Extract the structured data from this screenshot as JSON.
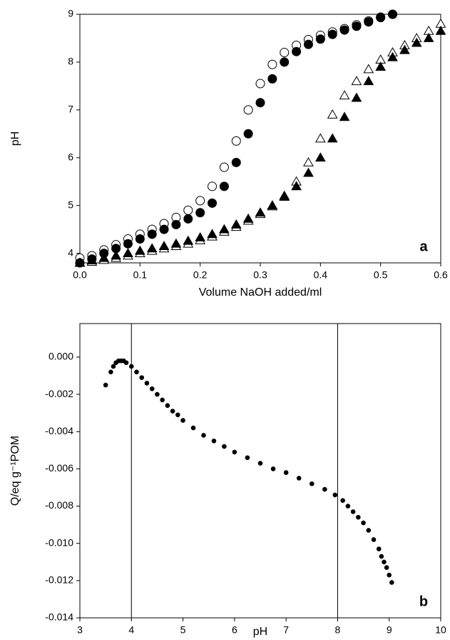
{
  "chart_data": [
    {
      "type": "scatter",
      "x_label": "Volume NaOH added/ml",
      "y_label": "pH",
      "annotation": "a",
      "xlim": [
        0,
        0.6
      ],
      "ylim": [
        3.8,
        9
      ],
      "xticks": [
        {
          "value": 0,
          "label": "0.0"
        },
        0.1,
        0.2,
        0.3,
        0.4,
        0.5,
        0.6
      ],
      "yticks": [
        4,
        5,
        6,
        7,
        8,
        9
      ],
      "series": [
        {
          "marker": "circle",
          "filled": false,
          "color": "#000000",
          "x": [
            0,
            0.02,
            0.04,
            0.06,
            0.08,
            0.1,
            0.12,
            0.14,
            0.16,
            0.18,
            0.2,
            0.22,
            0.24,
            0.26,
            0.28,
            0.3,
            0.32,
            0.34,
            0.36,
            0.38,
            0.4,
            0.42,
            0.44,
            0.46,
            0.48,
            0.5,
            0.52
          ],
          "values": [
            3.9,
            3.95,
            4.07,
            4.18,
            4.3,
            4.4,
            4.5,
            4.62,
            4.75,
            4.9,
            5.1,
            5.4,
            5.8,
            6.35,
            7.0,
            7.55,
            7.95,
            8.2,
            8.35,
            8.47,
            8.56,
            8.63,
            8.7,
            8.78,
            8.86,
            8.94,
            9.0
          ]
        },
        {
          "marker": "circle",
          "filled": true,
          "color": "#000000",
          "x": [
            0,
            0.02,
            0.04,
            0.06,
            0.08,
            0.1,
            0.12,
            0.14,
            0.16,
            0.18,
            0.2,
            0.22,
            0.24,
            0.26,
            0.28,
            0.3,
            0.32,
            0.34,
            0.36,
            0.38,
            0.4,
            0.42,
            0.44,
            0.46,
            0.48,
            0.5,
            0.52
          ],
          "values": [
            3.8,
            3.88,
            4.0,
            4.1,
            4.2,
            4.3,
            4.4,
            4.5,
            4.6,
            4.72,
            4.85,
            5.05,
            5.4,
            5.9,
            6.5,
            7.15,
            7.65,
            8.0,
            8.22,
            8.37,
            8.48,
            8.58,
            8.67,
            8.75,
            8.84,
            8.93,
            9.0
          ]
        },
        {
          "marker": "triangle",
          "filled": false,
          "color": "#000000",
          "x": [
            0,
            0.02,
            0.04,
            0.06,
            0.08,
            0.1,
            0.12,
            0.14,
            0.16,
            0.18,
            0.2,
            0.22,
            0.24,
            0.26,
            0.28,
            0.3,
            0.32,
            0.34,
            0.36,
            0.38,
            0.4,
            0.42,
            0.44,
            0.46,
            0.48,
            0.5,
            0.52,
            0.54,
            0.56,
            0.58,
            0.6
          ],
          "values": [
            3.8,
            3.82,
            3.86,
            3.9,
            3.95,
            4.0,
            4.05,
            4.1,
            4.15,
            4.2,
            4.27,
            4.35,
            4.45,
            4.55,
            4.68,
            4.82,
            4.98,
            5.2,
            5.5,
            5.9,
            6.4,
            6.9,
            7.3,
            7.6,
            7.85,
            8.05,
            8.2,
            8.35,
            8.5,
            8.65,
            8.8
          ]
        },
        {
          "marker": "triangle",
          "filled": true,
          "color": "#000000",
          "x": [
            0,
            0.02,
            0.04,
            0.06,
            0.08,
            0.1,
            0.12,
            0.14,
            0.16,
            0.18,
            0.2,
            0.22,
            0.24,
            0.26,
            0.28,
            0.3,
            0.32,
            0.34,
            0.36,
            0.38,
            0.4,
            0.42,
            0.44,
            0.46,
            0.48,
            0.5,
            0.52,
            0.54,
            0.56,
            0.58,
            0.6
          ],
          "values": [
            3.8,
            3.85,
            3.9,
            3.95,
            4.0,
            4.05,
            4.1,
            4.15,
            4.2,
            4.26,
            4.33,
            4.4,
            4.5,
            4.6,
            4.72,
            4.85,
            5.0,
            5.18,
            5.4,
            5.68,
            6.0,
            6.4,
            6.85,
            7.25,
            7.6,
            7.9,
            8.1,
            8.25,
            8.4,
            8.5,
            8.65
          ]
        }
      ]
    },
    {
      "type": "scatter",
      "x_label": "pH",
      "y_label": "Q/eq g⁻¹POM",
      "annotation": "b",
      "xlim": [
        3,
        10
      ],
      "ylim": [
        -0.014,
        0.0018
      ],
      "xticks": [
        3,
        4,
        5,
        6,
        7,
        8,
        9,
        10
      ],
      "yticks": [
        {
          "value": -0.014,
          "label": "-0.014"
        },
        {
          "value": -0.012,
          "label": "-0.012"
        },
        {
          "value": -0.01,
          "label": "-0.010"
        },
        {
          "value": -0.008,
          "label": "-0.008"
        },
        {
          "value": -0.006,
          "label": "-0.006"
        },
        {
          "value": -0.004,
          "label": "-0.004"
        },
        {
          "value": -0.002,
          "label": "-0.002"
        },
        {
          "value": 0,
          "label": "0.000"
        }
      ],
      "vlines": [
        4,
        8
      ],
      "series": [
        {
          "marker": "dot",
          "filled": true,
          "color": "#000000",
          "x": [
            3.5,
            3.6,
            3.65,
            3.7,
            3.75,
            3.8,
            3.85,
            3.9,
            4.0,
            4.1,
            4.2,
            4.3,
            4.4,
            4.5,
            4.6,
            4.7,
            4.8,
            4.9,
            5.0,
            5.2,
            5.4,
            5.6,
            5.8,
            6.0,
            6.25,
            6.5,
            6.75,
            7.0,
            7.25,
            7.5,
            7.75,
            7.95,
            8.1,
            8.2,
            8.3,
            8.4,
            8.5,
            8.6,
            8.7,
            8.8,
            8.85,
            8.9,
            8.95,
            9.0,
            9.05
          ],
          "values": [
            -0.0015,
            -0.0008,
            -0.0005,
            -0.0003,
            -0.0002,
            -0.0002,
            -0.0002,
            -0.0003,
            -0.0005,
            -0.0008,
            -0.0011,
            -0.0014,
            -0.0017,
            -0.002,
            -0.0023,
            -0.0026,
            -0.0029,
            -0.0031,
            -0.0034,
            -0.0038,
            -0.0042,
            -0.0045,
            -0.0048,
            -0.0051,
            -0.0054,
            -0.0057,
            -0.006,
            -0.0062,
            -0.0065,
            -0.0068,
            -0.0071,
            -0.0074,
            -0.0077,
            -0.008,
            -0.0083,
            -0.0086,
            -0.0089,
            -0.0093,
            -0.0098,
            -0.0103,
            -0.0107,
            -0.011,
            -0.0113,
            -0.0117,
            -0.0121
          ]
        }
      ]
    }
  ]
}
